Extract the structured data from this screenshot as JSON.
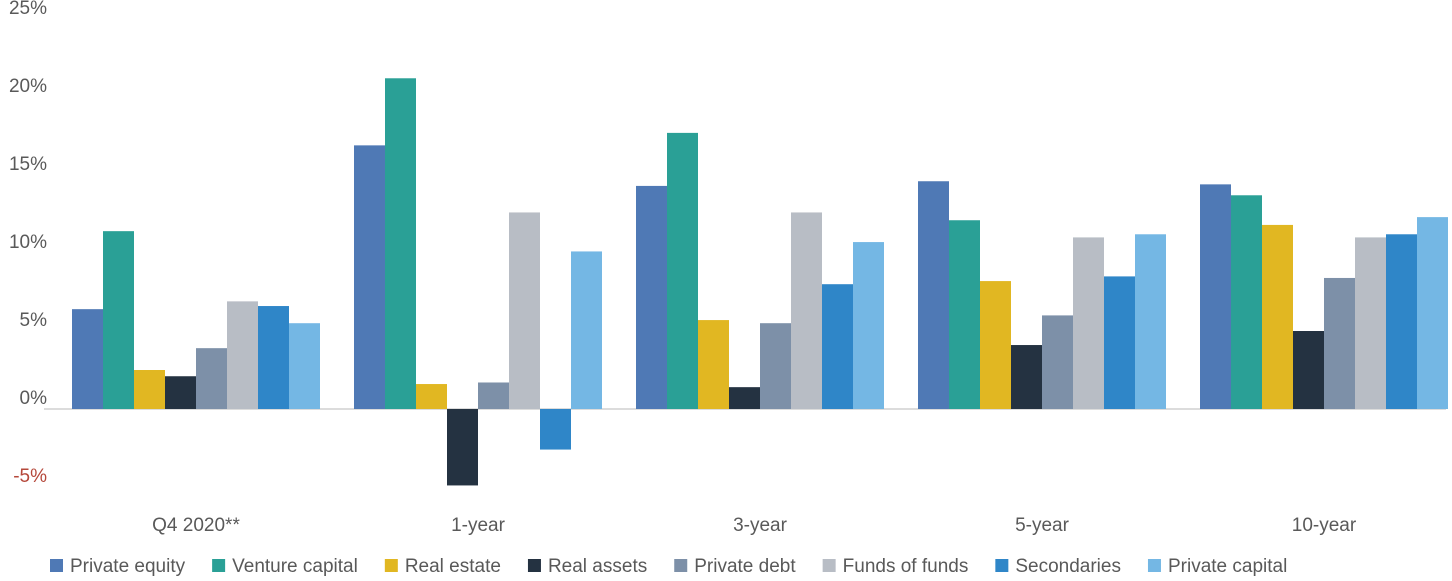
{
  "chart_data": {
    "type": "bar",
    "categories": [
      "Q4 2020**",
      "1-year",
      "3-year",
      "5-year",
      "10-year"
    ],
    "series": [
      {
        "name": "Private equity",
        "color": "#4f79b5",
        "values": [
          6.4,
          16.9,
          14.3,
          14.6,
          14.4
        ]
      },
      {
        "name": "Venture capital",
        "color": "#2aa096",
        "values": [
          11.4,
          21.2,
          17.7,
          12.1,
          13.7
        ]
      },
      {
        "name": "Real estate",
        "color": "#e1b722",
        "values": [
          2.5,
          1.6,
          5.7,
          8.2,
          11.8
        ]
      },
      {
        "name": "Real assets",
        "color": "#243241",
        "values": [
          2.1,
          -4.9,
          1.4,
          4.1,
          5.0
        ]
      },
      {
        "name": "Private debt",
        "color": "#7d90a8",
        "values": [
          3.9,
          1.7,
          5.5,
          6.0,
          8.4
        ]
      },
      {
        "name": "Funds of funds",
        "color": "#b8bdc5",
        "values": [
          6.9,
          12.6,
          12.6,
          11.0,
          11.0
        ]
      },
      {
        "name": "Secondaries",
        "color": "#2f86c8",
        "values": [
          6.6,
          -2.6,
          8.0,
          8.5,
          11.2
        ]
      },
      {
        "name": "Private capital",
        "color": "#74b7e4",
        "values": [
          5.5,
          10.1,
          10.7,
          11.2,
          12.3
        ]
      }
    ],
    "ylim": [
      -5,
      25
    ],
    "yticks": [
      {
        "value": -5,
        "label": "-5%"
      },
      {
        "value": 0,
        "label": "0%"
      },
      {
        "value": 5,
        "label": "5%"
      },
      {
        "value": 10,
        "label": "10%"
      },
      {
        "value": 15,
        "label": "15%"
      },
      {
        "value": 20,
        "label": "20%"
      },
      {
        "value": 25,
        "label": "25%"
      }
    ],
    "negative_tick_color": "#b5483b",
    "grid": false,
    "legend": "bottom"
  }
}
